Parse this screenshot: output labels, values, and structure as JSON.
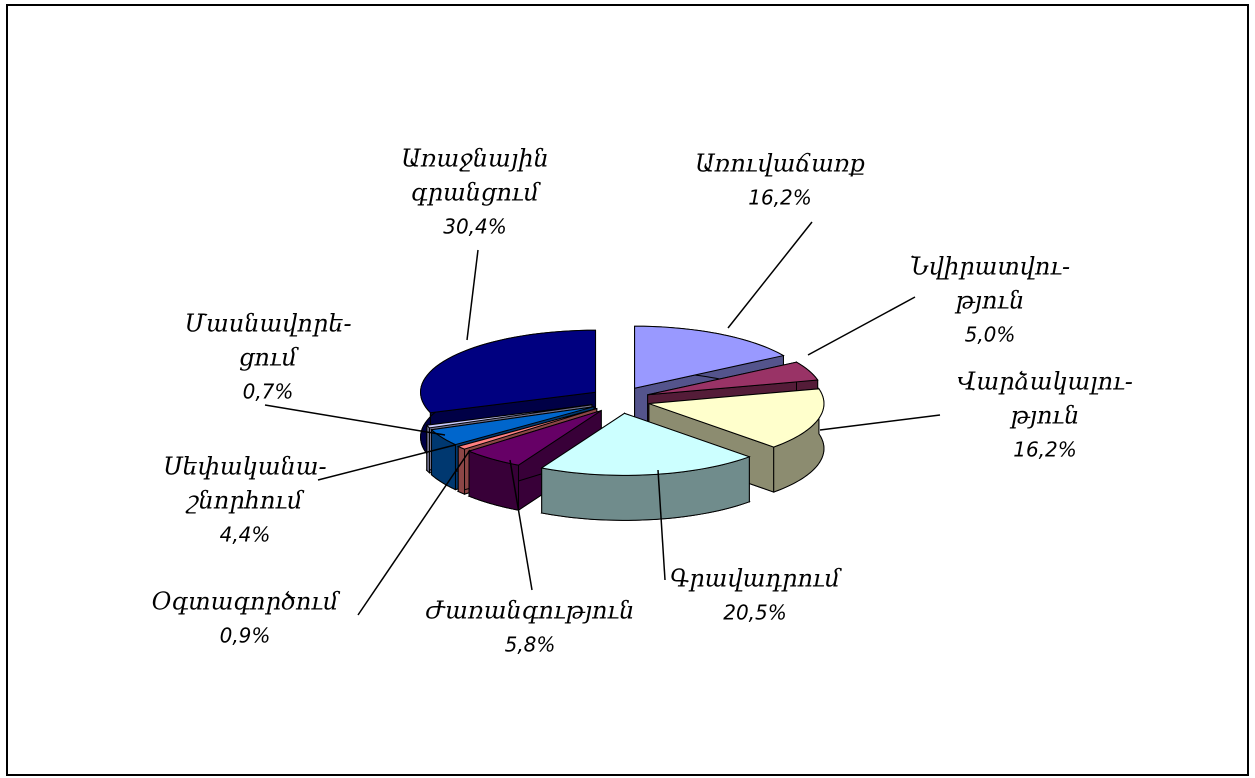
{
  "chart_data": {
    "type": "pie3d",
    "categories": [
      [
        "Առուվաճառք"
      ],
      [
        "Նվիրատվու-",
        "թյուն"
      ],
      [
        "Վարձակալու-",
        "թյուն"
      ],
      [
        "Գրավադրում"
      ],
      [
        "Ժառանգություն"
      ],
      [
        "Օգտագործում"
      ],
      [
        "Սեփականա-",
        "շնորհում"
      ],
      [
        "Մասնավորե-",
        "ցում"
      ],
      [
        "Առաջնային",
        "գրանցում"
      ]
    ],
    "values": [
      16.2,
      5.0,
      16.2,
      20.5,
      5.8,
      0.9,
      4.4,
      0.7,
      30.4
    ],
    "value_labels": [
      "16,2%",
      "5,0%",
      "16,2%",
      "20,5%",
      "5,8%",
      "0,9%",
      "4,4%",
      "0,7%",
      "30,4%"
    ],
    "colors": [
      "#9999ff",
      "#993366",
      "#ffffcc",
      "#ccffff",
      "#660066",
      "#ff8080",
      "#0066cc",
      "#ccccff",
      "#000080"
    ]
  }
}
